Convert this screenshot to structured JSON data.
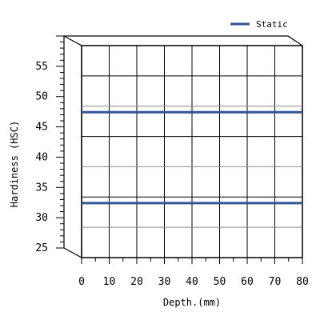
{
  "chart_data": {
    "type": "line",
    "title": "",
    "xlabel": "Depth.(mm)",
    "ylabel": "Hardiness (HSC)",
    "xlim": [
      0,
      80
    ],
    "ylim": [
      25,
      60
    ],
    "xticks": [
      "0",
      "10",
      "20",
      "30",
      "40",
      "50",
      "60",
      "70",
      "80"
    ],
    "yticks": [
      "25",
      "30",
      "35",
      "40",
      "45",
      "50",
      "55"
    ],
    "grid": true,
    "legend_position": "top-right",
    "series": [
      {
        "name": "Static",
        "color": "#2f5597",
        "lines": [
          {
            "x": [
              0,
              80
            ],
            "y": [
              49,
              49
            ]
          },
          {
            "x": [
              0,
              80
            ],
            "y": [
              34,
              34
            ]
          }
        ]
      }
    ]
  }
}
